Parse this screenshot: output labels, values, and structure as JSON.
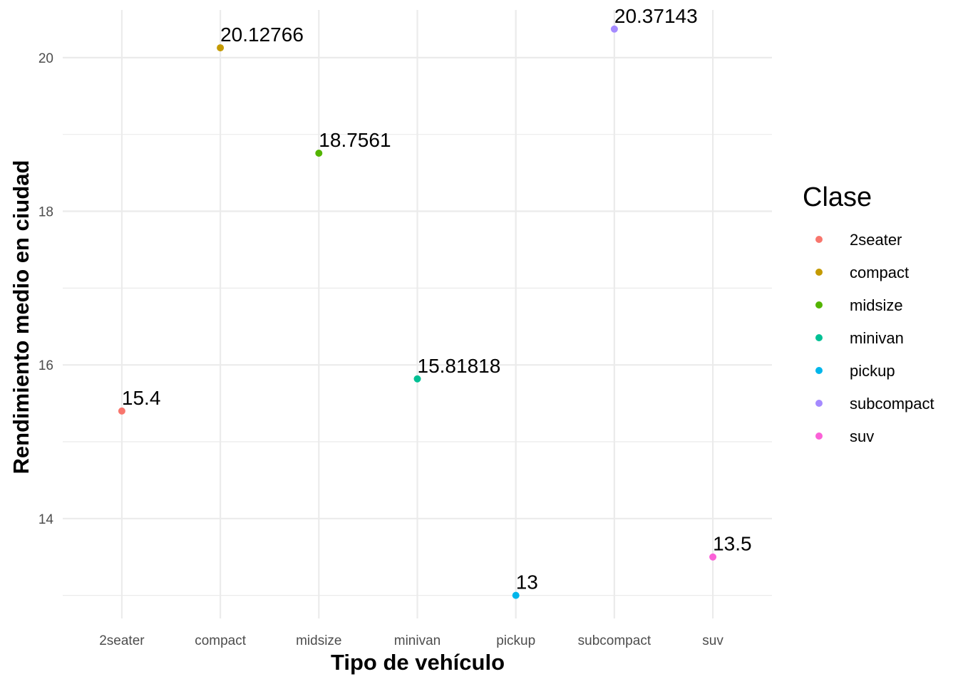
{
  "chart_data": {
    "type": "scatter",
    "title": "",
    "xlabel": "Tipo de vehículo",
    "ylabel": "Rendimiento medio en ciudad",
    "categories": [
      "2seater",
      "compact",
      "midsize",
      "minivan",
      "pickup",
      "subcompact",
      "suv"
    ],
    "values": [
      15.4,
      20.12766,
      18.7561,
      15.81818,
      13,
      20.37143,
      13.5
    ],
    "data_labels": [
      "15.4",
      "20.12766",
      "18.7561",
      "15.81818",
      "13",
      "20.37143",
      "13.5"
    ],
    "ylim": [
      12.7,
      20.62
    ],
    "y_ticks": [
      14,
      16,
      18,
      20
    ],
    "y_tick_labels": [
      "14",
      "16",
      "18",
      "20"
    ],
    "grid": true,
    "legend": {
      "title": "Clase",
      "position": "right",
      "entries": [
        "2seater",
        "compact",
        "midsize",
        "minivan",
        "pickup",
        "subcompact",
        "suv"
      ]
    },
    "colors": [
      "#F8766D",
      "#C49A00",
      "#53B400",
      "#00C094",
      "#00B6EB",
      "#A58AFF",
      "#FB61D7"
    ],
    "grid_color": "#ebebeb",
    "tick_color": "#4d4d4d"
  }
}
